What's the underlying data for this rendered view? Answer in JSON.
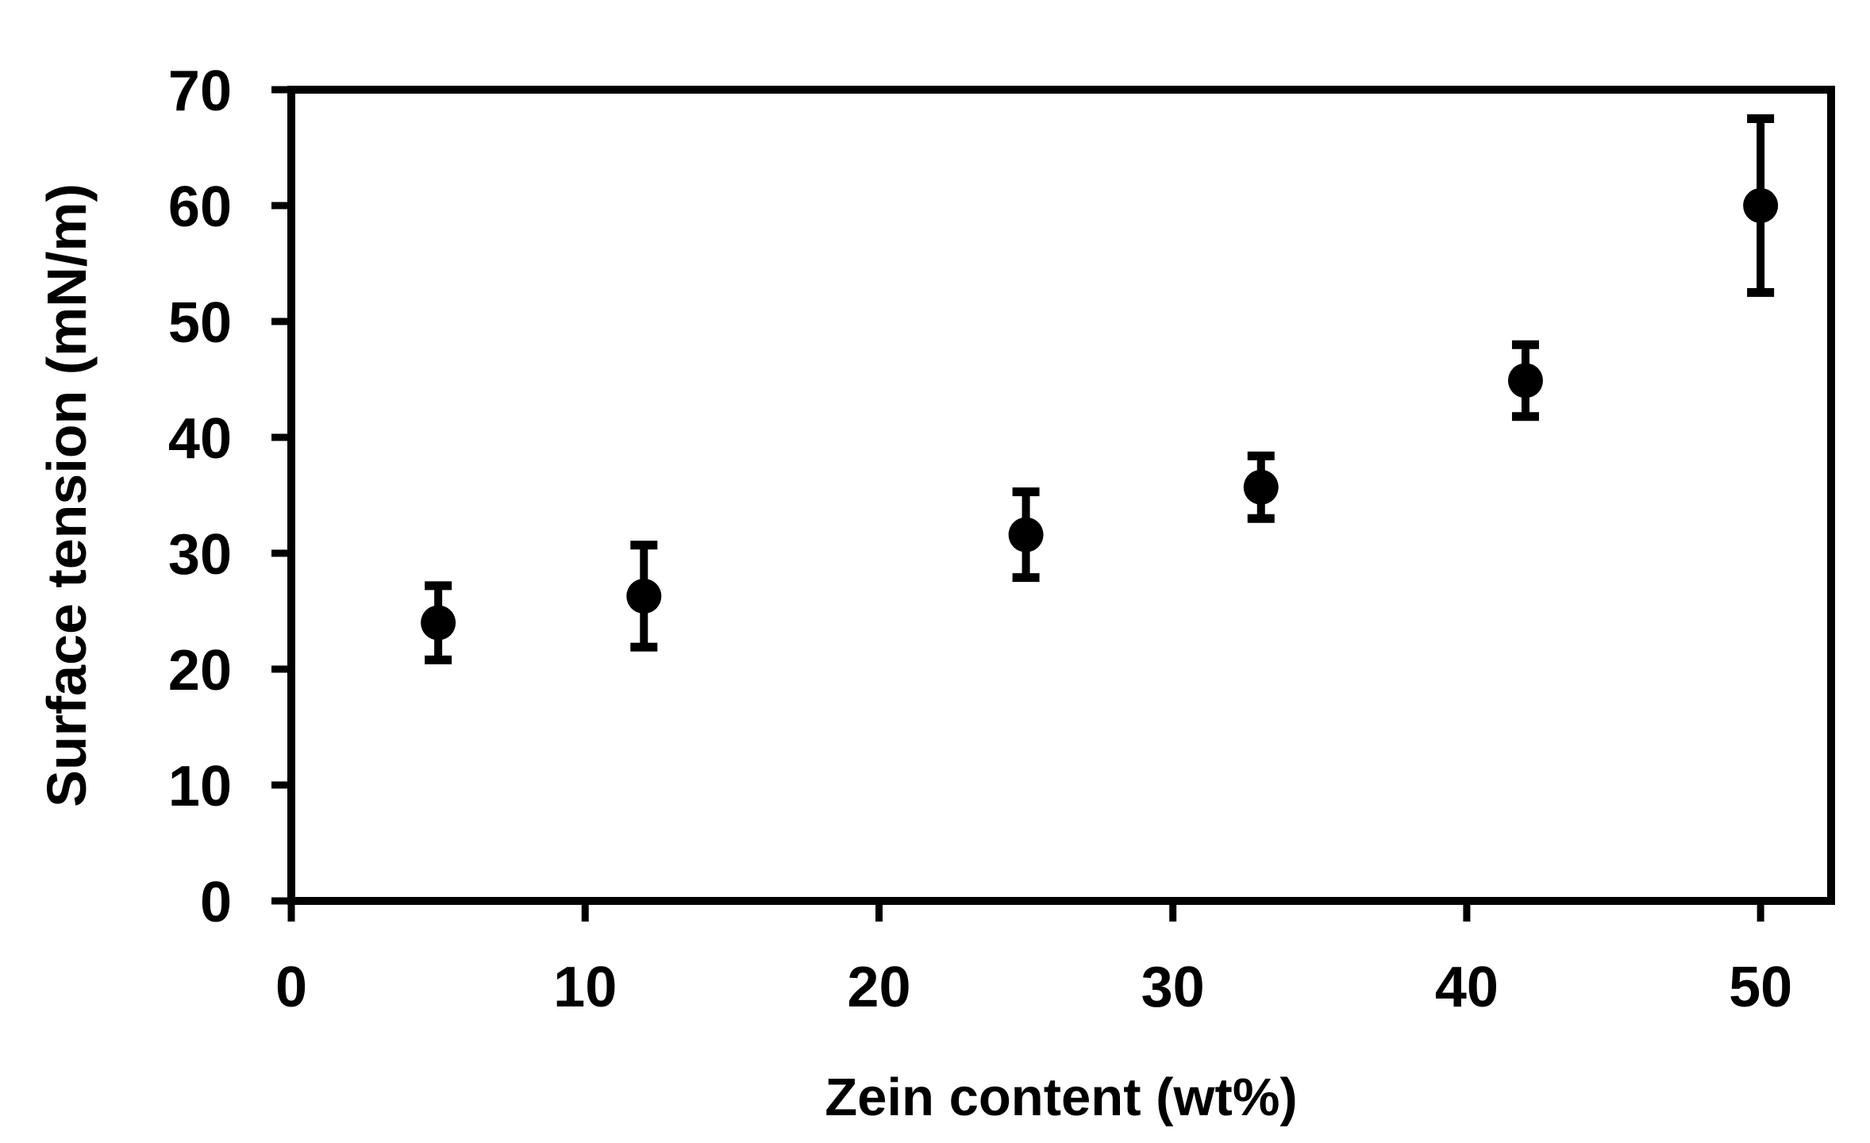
{
  "figure": {
    "background_color": "#ffffff",
    "ink_color": "#000000"
  },
  "chart_data": {
    "type": "scatter",
    "title": "",
    "xlabel": "Zein content (wt%)",
    "ylabel": "Surface tension (mN/m)",
    "x": [
      5,
      12,
      25,
      33,
      42,
      50
    ],
    "y": [
      24.0,
      26.3,
      31.6,
      35.7,
      44.9,
      60.0
    ],
    "yerr": [
      3.2,
      4.4,
      3.7,
      2.7,
      3.1,
      7.5
    ],
    "xticks": [
      0,
      10,
      20,
      30,
      40,
      50
    ],
    "yticks": [
      0,
      10,
      20,
      30,
      40,
      50,
      60,
      70
    ],
    "xlim": [
      0,
      52.4
    ],
    "ylim": [
      0,
      70
    ],
    "grid": false,
    "legend": "none",
    "frame": "full-box",
    "marker": "filled-circle",
    "marker_color": "#000000",
    "error_bars": "vertical-with-caps"
  }
}
